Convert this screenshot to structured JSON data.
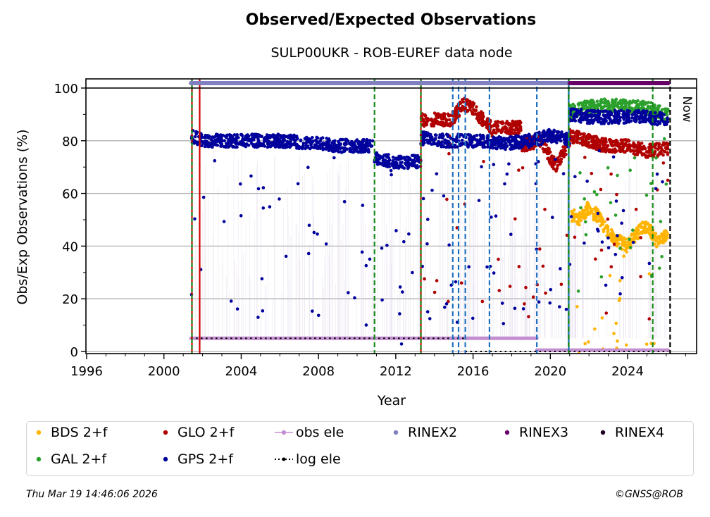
{
  "chart_data": {
    "type": "scatter",
    "title": "Observed/Expected Observations",
    "subtitle": "SULP00UKR - ROB-EUREF data node",
    "xlabel": "Year",
    "ylabel": "Obs/Exp Observations (%)",
    "xlim": [
      1996,
      2027.2
    ],
    "ylim": [
      -0.5,
      103.5
    ],
    "x_ticks": [
      1996,
      2000,
      2004,
      2008,
      2012,
      2016,
      2020,
      2024
    ],
    "x_tick_labels": [
      "1996",
      "2000",
      "2004",
      "2008",
      "2012",
      "2016",
      "2020",
      "2024"
    ],
    "y_ticks": [
      0,
      20,
      40,
      60,
      80,
      100
    ],
    "y_tick_labels": [
      "0",
      "20",
      "40",
      "60",
      "80",
      "100"
    ],
    "grid": "horizontal",
    "now_label": "Now",
    "now_year": 2026.2,
    "legend_position": "below",
    "series": [
      {
        "name": "BDS 2+f",
        "color": "#ffb400",
        "marker": "dot",
        "segments": [
          {
            "start": 2021.1,
            "end": 2026.1,
            "mean_points": [
              [
                2021.1,
                52
              ],
              [
                2021.5,
                50
              ],
              [
                2022.0,
                55
              ],
              [
                2022.5,
                51
              ],
              [
                2023.0,
                45
              ],
              [
                2023.5,
                42
              ],
              [
                2024.0,
                40
              ],
              [
                2024.5,
                45
              ],
              [
                2025.0,
                48
              ],
              [
                2025.5,
                42
              ],
              [
                2026.1,
                44
              ]
            ]
          }
        ]
      },
      {
        "name": "GAL 2+f",
        "color": "#2ca02c",
        "marker": "dot",
        "segments": [
          {
            "start": 2021.0,
            "end": 2026.1,
            "mean_points": [
              [
                2021.0,
                91
              ],
              [
                2022.0,
                93
              ],
              [
                2023.0,
                93.5
              ],
              [
                2024.0,
                93
              ],
              [
                2025.0,
                92.5
              ],
              [
                2026.1,
                90
              ]
            ]
          }
        ]
      },
      {
        "name": "GLO 2+f",
        "color": "#b00000",
        "marker": "dot",
        "segments": [
          {
            "start": 2013.3,
            "end": 2014.9,
            "mean_points": [
              [
                2013.3,
                88
              ],
              [
                2014.9,
                88
              ]
            ]
          },
          {
            "start": 2014.9,
            "end": 2017.0,
            "mean_points": [
              [
                2014.9,
                88
              ],
              [
                2015.5,
                94
              ],
              [
                2016.0,
                92
              ],
              [
                2016.5,
                88
              ],
              [
                2017.0,
                85
              ]
            ]
          },
          {
            "start": 2017.0,
            "end": 2018.5,
            "mean_points": [
              [
                2017.0,
                85
              ],
              [
                2018.5,
                85
              ]
            ]
          },
          {
            "start": 2018.5,
            "end": 2021.0,
            "mean_points": [
              [
                2018.5,
                78
              ],
              [
                2019.5,
                80
              ],
              [
                2020.3,
                70
              ],
              [
                2021.0,
                80
              ]
            ]
          },
          {
            "start": 2021.0,
            "end": 2026.1,
            "mean_points": [
              [
                2021.0,
                82
              ],
              [
                2022.0,
                80
              ],
              [
                2023.0,
                78
              ],
              [
                2024.0,
                78
              ],
              [
                2025.0,
                76
              ],
              [
                2026.1,
                77
              ]
            ]
          }
        ]
      },
      {
        "name": "GPS 2+f",
        "color": "#00009c",
        "marker": "dot",
        "segments": [
          {
            "start": 2001.4,
            "end": 2010.8,
            "mean_points": [
              [
                2001.4,
                82
              ],
              [
                2002.0,
                80
              ],
              [
                2004.0,
                80
              ],
              [
                2006.0,
                80
              ],
              [
                2008.0,
                79
              ],
              [
                2009.0,
                78
              ],
              [
                2010.8,
                78
              ]
            ]
          },
          {
            "start": 2010.9,
            "end": 2013.3,
            "mean_points": [
              [
                2010.9,
                73
              ],
              [
                2012.0,
                72
              ],
              [
                2013.3,
                72
              ]
            ]
          },
          {
            "start": 2013.3,
            "end": 2021.0,
            "mean_points": [
              [
                2013.3,
                81
              ],
              [
                2014.5,
                80
              ],
              [
                2016.0,
                80
              ],
              [
                2017.5,
                79
              ],
              [
                2019.0,
                80
              ],
              [
                2020.0,
                82
              ],
              [
                2021.0,
                80
              ]
            ]
          },
          {
            "start": 2021.0,
            "end": 2026.1,
            "mean_points": [
              [
                2021.0,
                90
              ],
              [
                2022.0,
                89
              ],
              [
                2023.0,
                89
              ],
              [
                2024.0,
                89
              ],
              [
                2025.0,
                89
              ],
              [
                2026.1,
                88
              ]
            ]
          }
        ]
      },
      {
        "name": "obs ele",
        "color": "#c38fd0",
        "marker": "line-dot",
        "segments": [
          {
            "start": 2001.4,
            "end": 2014.8,
            "value": 5
          },
          {
            "start": 2014.8,
            "end": 2019.3,
            "value": 5
          },
          {
            "start": 2019.3,
            "end": 2026.1,
            "value": 0.5
          }
        ]
      },
      {
        "name": "RINEX2",
        "color": "#8080c0",
        "marker": "dot",
        "segments": [
          {
            "start": 2001.4,
            "end": 2010.8,
            "value": 101.5
          },
          {
            "start": 2010.9,
            "end": 2014.8,
            "value": 101.5
          },
          {
            "start": 2014.8,
            "end": 2021.0,
            "value": 101.5
          }
        ]
      },
      {
        "name": "RINEX3",
        "color": "#660066",
        "marker": "dot",
        "segments": [
          {
            "start": 2021.0,
            "end": 2026.1,
            "value": 101.5
          }
        ]
      },
      {
        "name": "RINEX4",
        "color": "#200020",
        "marker": "dot",
        "segments": []
      },
      {
        "name": "log ele",
        "color": "#000000",
        "marker": "dotted-line",
        "segments": [
          {
            "start": 2001.4,
            "end": 2015.6,
            "value": 5
          },
          {
            "start": 2015.6,
            "end": 2026.1,
            "value": 0
          }
        ]
      }
    ],
    "event_lines": [
      {
        "x": 2001.45,
        "style": "red-green-dashed"
      },
      {
        "x": 2001.85,
        "style": "red-solid"
      },
      {
        "x": 2010.9,
        "style": "green-dashed"
      },
      {
        "x": 2013.3,
        "style": "red-green-dashed"
      },
      {
        "x": 2014.95,
        "style": "blue-dashed"
      },
      {
        "x": 2015.25,
        "style": "blue-dashed"
      },
      {
        "x": 2015.6,
        "style": "blue-dashed"
      },
      {
        "x": 2016.85,
        "style": "blue-dashed"
      },
      {
        "x": 2019.3,
        "style": "blue-dashed"
      },
      {
        "x": 2020.95,
        "style": "green-blue-dashed"
      },
      {
        "x": 2025.3,
        "style": "green-dashed"
      },
      {
        "x": 2026.2,
        "style": "black-dashed-now"
      }
    ]
  },
  "legend": {
    "items": [
      {
        "label": "BDS 2+f",
        "color": "#ffb400",
        "kind": "dot"
      },
      {
        "label": "GLO 2+f",
        "color": "#b00000",
        "kind": "dot"
      },
      {
        "label": "obs ele",
        "color": "#c38fd0",
        "kind": "line-dot"
      },
      {
        "label": "RINEX2",
        "color": "#8080c0",
        "kind": "dot"
      },
      {
        "label": "RINEX3",
        "color": "#660066",
        "kind": "dot"
      },
      {
        "label": "RINEX4",
        "color": "#200020",
        "kind": "dot"
      },
      {
        "label": "GAL 2+f",
        "color": "#2ca02c",
        "kind": "dot"
      },
      {
        "label": "GPS 2+f",
        "color": "#00009c",
        "kind": "dot"
      },
      {
        "label": "log ele",
        "color": "#000000",
        "kind": "dotted"
      }
    ]
  },
  "footer": {
    "timestamp": "Thu Mar 19 14:46:06 2026",
    "credit": "©GNSS@ROB"
  }
}
